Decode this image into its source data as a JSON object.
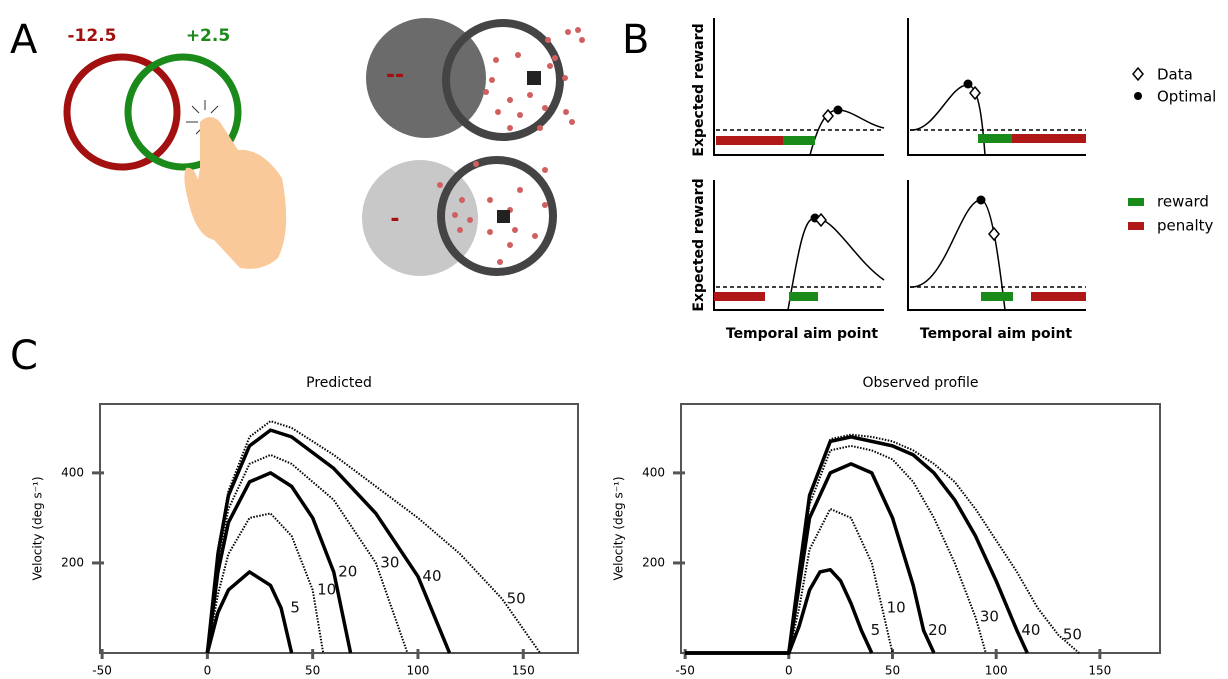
{
  "panels": {
    "a": {
      "label": "A",
      "left_score": "-12.5",
      "right_score": "+2.5",
      "high_penalty": "--",
      "low_penalty": "-"
    },
    "b": {
      "label": "B",
      "y_label": "Expected reward",
      "x_label": "Temporal aim point",
      "legend": [
        "Data",
        "Optimal",
        "reward",
        "penalty"
      ]
    },
    "c": {
      "label": "C"
    }
  },
  "chart_data": [
    {
      "type": "line",
      "title": "Predicted",
      "ylabel": "Velocity (deg s⁻¹)",
      "xlim": [
        -51,
        176
      ],
      "ylim": [
        0,
        553
      ],
      "xticks": [
        -50,
        0,
        50,
        100,
        150
      ],
      "yticks": [
        200,
        400
      ],
      "series": [
        {
          "name": "5",
          "color": "#000000",
          "line_style": "solid",
          "x": [
            0,
            5,
            10,
            20,
            30,
            35,
            40
          ],
          "values": [
            0,
            90,
            140,
            180,
            150,
            100,
            0
          ]
        },
        {
          "name": "10",
          "color": "#000000",
          "line_style": "dotted",
          "x": [
            0,
            5,
            10,
            20,
            30,
            40,
            50,
            55
          ],
          "values": [
            0,
            130,
            220,
            300,
            310,
            260,
            140,
            0
          ]
        },
        {
          "name": "20",
          "color": "#000000",
          "line_style": "solid",
          "x": [
            0,
            5,
            10,
            20,
            30,
            40,
            50,
            60,
            68
          ],
          "values": [
            0,
            180,
            290,
            380,
            400,
            370,
            300,
            180,
            0
          ]
        },
        {
          "name": "30",
          "color": "#000000",
          "line_style": "dotted",
          "x": [
            0,
            5,
            10,
            20,
            30,
            40,
            60,
            80,
            95
          ],
          "values": [
            0,
            200,
            320,
            420,
            440,
            420,
            340,
            200,
            0
          ]
        },
        {
          "name": "40",
          "color": "#000000",
          "line_style": "solid",
          "x": [
            0,
            5,
            10,
            20,
            30,
            40,
            60,
            80,
            100,
            115
          ],
          "values": [
            0,
            220,
            350,
            460,
            495,
            480,
            410,
            310,
            170,
            0
          ]
        },
        {
          "name": "50",
          "color": "#000000",
          "line_style": "dotted",
          "x": [
            0,
            5,
            10,
            20,
            30,
            40,
            60,
            80,
            100,
            120,
            140,
            158
          ],
          "values": [
            0,
            230,
            360,
            480,
            515,
            500,
            440,
            370,
            300,
            220,
            120,
            0
          ]
        }
      ]
    },
    {
      "type": "line",
      "title": "Observed profile",
      "ylabel": "Velocity (deg s⁻¹)",
      "xlim": [
        -52,
        179
      ],
      "ylim": [
        0,
        553
      ],
      "xticks": [
        -50,
        0,
        50,
        100,
        150
      ],
      "yticks": [
        200,
        400
      ],
      "series": [
        {
          "name": "5",
          "color": "#000000",
          "line_style": "solid",
          "x": [
            -50,
            0,
            5,
            10,
            15,
            20,
            25,
            30,
            35,
            40
          ],
          "values": [
            0,
            0,
            60,
            140,
            180,
            185,
            160,
            110,
            50,
            0
          ]
        },
        {
          "name": "10",
          "color": "#000000",
          "line_style": "dotted",
          "x": [
            -50,
            0,
            5,
            10,
            20,
            30,
            40,
            45,
            50
          ],
          "values": [
            0,
            0,
            100,
            230,
            320,
            300,
            200,
            100,
            0
          ]
        },
        {
          "name": "20",
          "color": "#000000",
          "line_style": "solid",
          "x": [
            -50,
            0,
            5,
            10,
            20,
            30,
            40,
            50,
            60,
            65,
            70
          ],
          "values": [
            0,
            0,
            150,
            300,
            400,
            420,
            400,
            300,
            150,
            50,
            0
          ]
        },
        {
          "name": "30",
          "color": "#000000",
          "line_style": "dotted",
          "x": [
            -50,
            0,
            5,
            10,
            20,
            30,
            40,
            50,
            60,
            70,
            80,
            90,
            95
          ],
          "values": [
            0,
            0,
            170,
            330,
            450,
            460,
            450,
            430,
            380,
            300,
            200,
            80,
            0
          ]
        },
        {
          "name": "40",
          "color": "#000000",
          "line_style": "solid",
          "x": [
            -50,
            0,
            5,
            10,
            20,
            30,
            40,
            50,
            60,
            70,
            80,
            90,
            100,
            110,
            115
          ],
          "values": [
            0,
            0,
            180,
            350,
            470,
            480,
            470,
            460,
            440,
            400,
            340,
            260,
            160,
            50,
            0
          ]
        },
        {
          "name": "50",
          "color": "#000000",
          "line_style": "dotted",
          "x": [
            -50,
            0,
            5,
            10,
            20,
            30,
            40,
            50,
            60,
            70,
            80,
            90,
            100,
            110,
            120,
            130,
            140
          ],
          "values": [
            0,
            0,
            180,
            350,
            475,
            485,
            480,
            470,
            450,
            420,
            380,
            320,
            250,
            180,
            100,
            40,
            0
          ]
        }
      ]
    }
  ]
}
